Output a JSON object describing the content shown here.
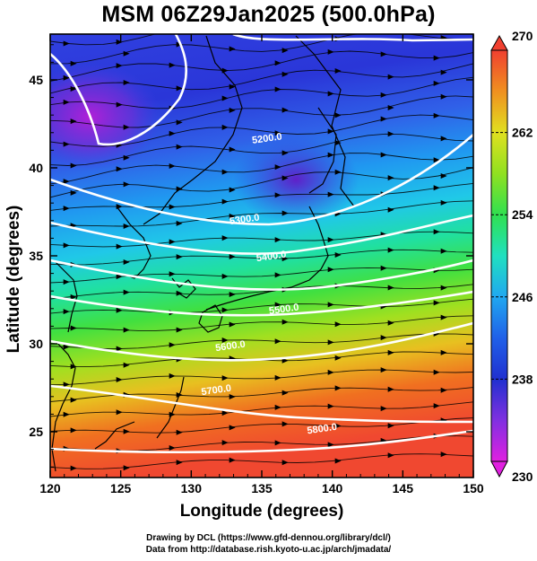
{
  "title": "MSM 06Z29Jan2025 (500.0hPa)",
  "footer": {
    "drawing": "Drawing by DCL (https://www.gfd-dennou.org/library/dcl/)",
    "data": "Data from http://database.rish.kyoto-u.ac.jp/arch/jmadata/"
  },
  "chart_data": {
    "type": "heatmap",
    "title": "MSM 06Z29Jan2025 (500.0hPa)",
    "xlabel": "Longitude (degrees)",
    "ylabel": "Latitude  (degrees)",
    "xlim": [
      120,
      150
    ],
    "ylim": [
      22.4,
      47.6
    ],
    "x_ticks": [
      "120",
      "125",
      "130",
      "135",
      "140",
      "145",
      "150"
    ],
    "y_ticks": [
      "25",
      "30",
      "35",
      "40",
      "45"
    ],
    "colorbar": {
      "min": 230,
      "max": 270,
      "ticks": [
        "230",
        "238",
        "246",
        "254",
        "262",
        "270"
      ],
      "colors": [
        "#e020e0",
        "#a030e0",
        "#3040e0",
        "#2090f0",
        "#20d0e0",
        "#20e090",
        "#40e040",
        "#a0e020",
        "#e0e020",
        "#f0a020",
        "#f06020",
        "#f04030"
      ]
    },
    "contours": [
      {
        "label": "5200.0",
        "lon": 135.4,
        "lat": 41.5
      },
      {
        "label": "5300.0",
        "lon": 133.8,
        "lat": 36.9
      },
      {
        "label": "5400.0",
        "lon": 135.7,
        "lat": 34.8
      },
      {
        "label": "5500.0",
        "lon": 136.6,
        "lat": 31.8
      },
      {
        "label": "5600.0",
        "lon": 132.8,
        "lat": 29.7
      },
      {
        "label": "5700.0",
        "lon": 131.8,
        "lat": 27.2
      },
      {
        "label": "5800.0",
        "lon": 139.3,
        "lat": 25.0
      }
    ]
  }
}
